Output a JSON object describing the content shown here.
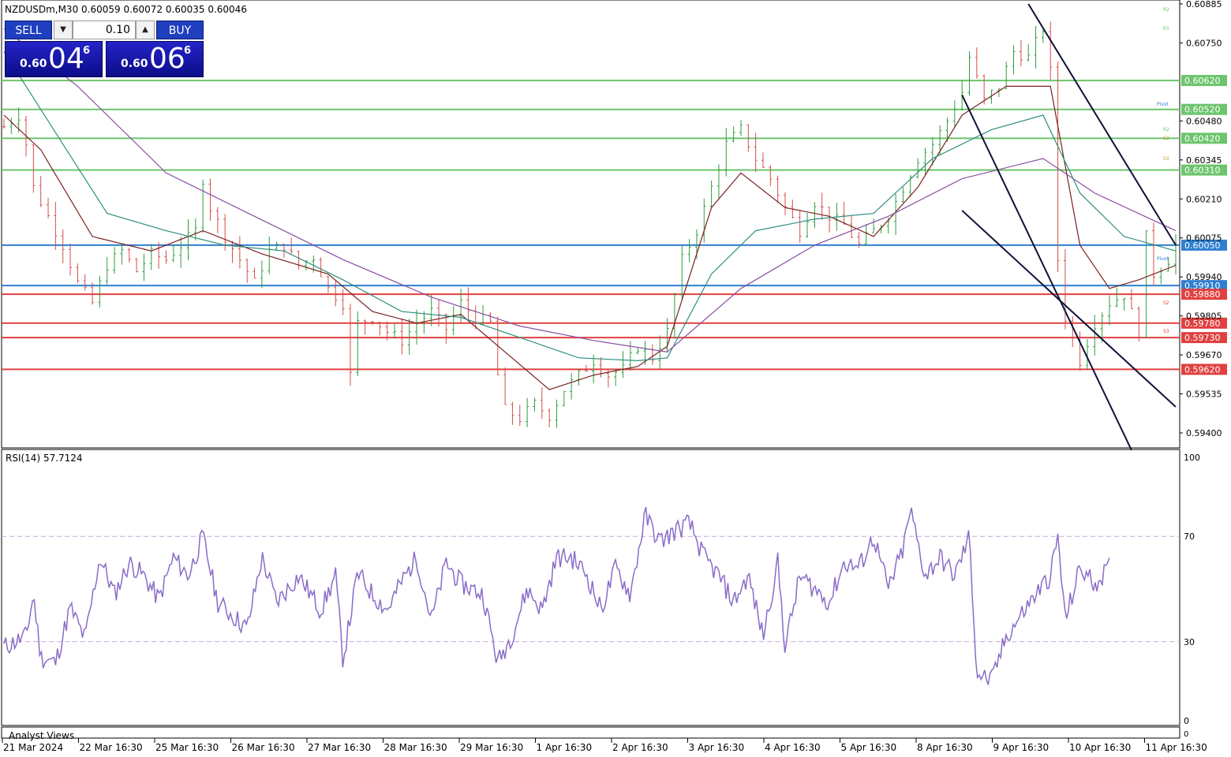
{
  "header": {
    "symbol_text": "NZDUSDm,M30  0.60059 0.60072 0.60035 0.60046"
  },
  "trade_panel": {
    "sell_label": "SELL",
    "buy_label": "BUY",
    "volume": "0.10",
    "sell_price": {
      "prefix": "0.60",
      "big": "04",
      "sup": "6"
    },
    "buy_price": {
      "prefix": "0.60",
      "big": "06",
      "sup": "6"
    }
  },
  "colors": {
    "background": "#ffffff",
    "bull_candle": "#2e9e3a",
    "bear_candle": "#d2504a",
    "resistance": "#6cc46c",
    "support": "#e04040",
    "pivot_level": "#2f7fd0",
    "ema_fast": "#7a2020",
    "ema_mid": "#2f8f80",
    "ema_slow": "#8a4fa0",
    "channel": "#10103a",
    "rsi_line": "#8a6cc8",
    "rsi_levels": "#c8a8d8"
  },
  "levels_text": {
    "r2_top": "R2",
    "r1_top": "R1",
    "pivot": "Pivot",
    "r2_mid": "R2",
    "s2_mid": "S2",
    "s3_mid": "S3",
    "pivot_low": "Pivot",
    "s2_low": "S2",
    "s3_low": "S3"
  },
  "footer": {
    "analyst_views": "Analyst Views",
    "zero_label": "0"
  },
  "chart_data": [
    {
      "type": "candlestick",
      "title": "NZDUSDm,M30",
      "ohlc_latest": {
        "open": 0.60059,
        "high": 0.60072,
        "low": 0.60035,
        "close": 0.60046
      },
      "ylim": [
        0.5934,
        0.60885
      ],
      "y_ticks": [
        0.60885,
        0.6075,
        0.6048,
        0.60345,
        0.6021,
        0.60075,
        0.5994,
        0.59805,
        0.5967,
        0.59535,
        0.594
      ],
      "x_tick_labels": [
        "21 Mar 2024",
        "22 Mar 16:30",
        "25 Mar 16:30",
        "26 Mar 16:30",
        "27 Mar 16:30",
        "28 Mar 16:30",
        "29 Mar 16:30",
        "1 Apr 16:30",
        "2 Apr 16:30",
        "3 Apr 16:30",
        "4 Apr 16:30",
        "5 Apr 16:30",
        "8 Apr 16:30",
        "9 Apr 16:30",
        "10 Apr 16:30",
        "11 Apr 16:30"
      ],
      "horizontal_levels": [
        {
          "value": 0.6062,
          "label": "0.60620",
          "kind": "resistance"
        },
        {
          "value": 0.6052,
          "label": "0.60520",
          "kind": "resistance"
        },
        {
          "value": 0.6042,
          "label": "0.60420",
          "kind": "resistance"
        },
        {
          "value": 0.6031,
          "label": "0.60310",
          "kind": "resistance"
        },
        {
          "value": 0.6005,
          "label": "0.60050",
          "kind": "pivot"
        },
        {
          "value": 0.5991,
          "label": "0.59910",
          "kind": "pivot"
        },
        {
          "value": 0.5988,
          "label": "0.59880",
          "kind": "support"
        },
        {
          "value": 0.5978,
          "label": "0.59780",
          "kind": "support"
        },
        {
          "value": 0.5973,
          "label": "0.59730",
          "kind": "support"
        },
        {
          "value": 0.5962,
          "label": "0.59620",
          "kind": "support"
        }
      ],
      "close_path": [
        [
          0,
          0.6046
        ],
        [
          2,
          0.605
        ],
        [
          3,
          0.604
        ],
        [
          4,
          0.6025
        ],
        [
          6,
          0.6015
        ],
        [
          8,
          0.6005
        ],
        [
          10,
          0.5992
        ],
        [
          12,
          0.5985
        ],
        [
          14,
          0.5998
        ],
        [
          16,
          0.6003
        ],
        [
          18,
          0.5996
        ],
        [
          20,
          0.6002
        ],
        [
          22,
          0.6
        ],
        [
          24,
          0.6005
        ],
        [
          26,
          0.601
        ],
        [
          27,
          0.6028
        ],
        [
          28,
          0.6018
        ],
        [
          30,
          0.6008
        ],
        [
          32,
          0.6
        ],
        [
          34,
          0.5992
        ],
        [
          36,
          0.6003
        ],
        [
          38,
          0.6005
        ],
        [
          40,
          0.5998
        ],
        [
          42,
          0.6001
        ],
        [
          44,
          0.599
        ],
        [
          46,
          0.5985
        ],
        [
          47,
          0.596
        ],
        [
          48,
          0.5978
        ],
        [
          50,
          0.598
        ],
        [
          52,
          0.5975
        ],
        [
          54,
          0.5972
        ],
        [
          56,
          0.5978
        ],
        [
          58,
          0.5982
        ],
        [
          60,
          0.5976
        ],
        [
          62,
          0.5985
        ],
        [
          64,
          0.598
        ],
        [
          66,
          0.5978
        ],
        [
          67,
          0.596
        ],
        [
          68,
          0.5948
        ],
        [
          70,
          0.5945
        ],
        [
          72,
          0.595
        ],
        [
          74,
          0.5946
        ],
        [
          76,
          0.5955
        ],
        [
          78,
          0.596
        ],
        [
          80,
          0.5965
        ],
        [
          82,
          0.596
        ],
        [
          84,
          0.5962
        ],
        [
          86,
          0.597
        ],
        [
          88,
          0.5966
        ],
        [
          90,
          0.5975
        ],
        [
          92,
          0.6
        ],
        [
          94,
          0.601
        ],
        [
          96,
          0.6025
        ],
        [
          98,
          0.604
        ],
        [
          100,
          0.6045
        ],
        [
          102,
          0.6035
        ],
        [
          104,
          0.6028
        ],
        [
          106,
          0.6018
        ],
        [
          108,
          0.601
        ],
        [
          110,
          0.602
        ],
        [
          112,
          0.6015
        ],
        [
          114,
          0.6012
        ],
        [
          116,
          0.6005
        ],
        [
          118,
          0.601
        ],
        [
          120,
          0.6015
        ],
        [
          122,
          0.6025
        ],
        [
          124,
          0.6035
        ],
        [
          126,
          0.604
        ],
        [
          128,
          0.6048
        ],
        [
          130,
          0.6058
        ],
        [
          131,
          0.607
        ],
        [
          133,
          0.6055
        ],
        [
          135,
          0.606
        ],
        [
          137,
          0.6072
        ],
        [
          139,
          0.607
        ],
        [
          141,
          0.608
        ],
        [
          142,
          0.6065
        ],
        [
          143,
          0.6
        ],
        [
          144,
          0.598
        ],
        [
          146,
          0.5965
        ],
        [
          148,
          0.5978
        ],
        [
          150,
          0.5985
        ],
        [
          152,
          0.5988
        ],
        [
          154,
          0.5975
        ],
        [
          155,
          0.6008
        ],
        [
          156,
          0.5995
        ],
        [
          158,
          0.6
        ],
        [
          159,
          0.6005
        ]
      ],
      "ema_fast": [
        [
          0,
          0.605
        ],
        [
          5,
          0.6038
        ],
        [
          12,
          0.6008
        ],
        [
          20,
          0.6003
        ],
        [
          27,
          0.601
        ],
        [
          35,
          0.6002
        ],
        [
          44,
          0.5995
        ],
        [
          50,
          0.5982
        ],
        [
          56,
          0.5978
        ],
        [
          62,
          0.5981
        ],
        [
          68,
          0.5968
        ],
        [
          74,
          0.5955
        ],
        [
          80,
          0.596
        ],
        [
          86,
          0.5963
        ],
        [
          90,
          0.597
        ],
        [
          96,
          0.6018
        ],
        [
          100,
          0.603
        ],
        [
          106,
          0.6018
        ],
        [
          112,
          0.6015
        ],
        [
          118,
          0.6008
        ],
        [
          124,
          0.6025
        ],
        [
          130,
          0.605
        ],
        [
          136,
          0.606
        ],
        [
          142,
          0.606
        ],
        [
          146,
          0.6005
        ],
        [
          150,
          0.599
        ],
        [
          154,
          0.5993
        ],
        [
          159,
          0.5998
        ]
      ],
      "ema_mid": [
        [
          0,
          0.6072
        ],
        [
          6,
          0.6048
        ],
        [
          14,
          0.6016
        ],
        [
          22,
          0.601
        ],
        [
          30,
          0.6005
        ],
        [
          38,
          0.6003
        ],
        [
          46,
          0.5993
        ],
        [
          54,
          0.5982
        ],
        [
          62,
          0.598
        ],
        [
          70,
          0.5973
        ],
        [
          78,
          0.5966
        ],
        [
          86,
          0.5965
        ],
        [
          90,
          0.5966
        ],
        [
          96,
          0.5995
        ],
        [
          102,
          0.601
        ],
        [
          110,
          0.6014
        ],
        [
          118,
          0.6016
        ],
        [
          126,
          0.6035
        ],
        [
          134,
          0.6045
        ],
        [
          141,
          0.605
        ],
        [
          146,
          0.6023
        ],
        [
          152,
          0.6008
        ],
        [
          159,
          0.6003
        ]
      ],
      "ema_slow": [
        [
          0,
          0.608
        ],
        [
          10,
          0.606
        ],
        [
          22,
          0.603
        ],
        [
          34,
          0.6015
        ],
        [
          46,
          0.6
        ],
        [
          58,
          0.5987
        ],
        [
          70,
          0.5977
        ],
        [
          80,
          0.5972
        ],
        [
          90,
          0.5968
        ],
        [
          100,
          0.599
        ],
        [
          110,
          0.6005
        ],
        [
          120,
          0.6015
        ],
        [
          130,
          0.6028
        ],
        [
          141,
          0.6035
        ],
        [
          148,
          0.6023
        ],
        [
          159,
          0.601
        ]
      ],
      "channel_upper": [
        [
          139,
          0.60885
        ],
        [
          159,
          0.6005
        ]
      ],
      "channel_lower_a": [
        [
          130,
          0.6057
        ],
        [
          153,
          0.5934
        ]
      ],
      "channel_lower_b": [
        [
          130,
          0.6017
        ],
        [
          159,
          0.5949
        ]
      ]
    },
    {
      "type": "line",
      "title": "RSI(14) 57.7124",
      "series_name": "RSI(14)",
      "current_value": 57.7124,
      "ylim": [
        0,
        100
      ],
      "y_ticks": [
        100,
        70,
        30,
        0
      ],
      "levels": [
        70,
        30
      ],
      "values": [
        [
          0,
          28
        ],
        [
          3,
          32
        ],
        [
          4,
          48
        ],
        [
          5,
          24
        ],
        [
          7,
          22
        ],
        [
          9,
          43
        ],
        [
          11,
          31
        ],
        [
          13,
          62
        ],
        [
          15,
          48
        ],
        [
          17,
          60
        ],
        [
          19,
          55
        ],
        [
          21,
          46
        ],
        [
          23,
          62
        ],
        [
          25,
          55
        ],
        [
          27,
          70
        ],
        [
          29,
          45
        ],
        [
          31,
          40
        ],
        [
          33,
          35
        ],
        [
          35,
          62
        ],
        [
          37,
          45
        ],
        [
          40,
          55
        ],
        [
          43,
          42
        ],
        [
          45,
          55
        ],
        [
          46,
          23
        ],
        [
          48,
          56
        ],
        [
          50,
          48
        ],
        [
          52,
          42
        ],
        [
          54,
          53
        ],
        [
          56,
          62
        ],
        [
          58,
          38
        ],
        [
          60,
          60
        ],
        [
          62,
          52
        ],
        [
          65,
          48
        ],
        [
          67,
          22
        ],
        [
          69,
          33
        ],
        [
          71,
          50
        ],
        [
          73,
          42
        ],
        [
          75,
          62
        ],
        [
          77,
          62
        ],
        [
          79,
          56
        ],
        [
          81,
          42
        ],
        [
          83,
          58
        ],
        [
          85,
          48
        ],
        [
          87,
          78
        ],
        [
          89,
          68
        ],
        [
          91,
          72
        ],
        [
          93,
          75
        ],
        [
          95,
          62
        ],
        [
          97,
          55
        ],
        [
          99,
          45
        ],
        [
          101,
          55
        ],
        [
          103,
          32
        ],
        [
          105,
          60
        ],
        [
          106,
          28
        ],
        [
          108,
          55
        ],
        [
          110,
          50
        ],
        [
          112,
          45
        ],
        [
          114,
          60
        ],
        [
          116,
          58
        ],
        [
          118,
          70
        ],
        [
          120,
          50
        ],
        [
          122,
          65
        ],
        [
          123,
          80
        ],
        [
          125,
          55
        ],
        [
          127,
          62
        ],
        [
          129,
          55
        ],
        [
          131,
          70
        ],
        [
          132,
          18
        ],
        [
          134,
          15
        ],
        [
          136,
          32
        ],
        [
          138,
          40
        ],
        [
          140,
          48
        ],
        [
          142,
          55
        ],
        [
          143,
          70
        ],
        [
          144,
          38
        ],
        [
          146,
          58
        ],
        [
          148,
          52
        ],
        [
          150,
          58
        ]
      ]
    }
  ]
}
